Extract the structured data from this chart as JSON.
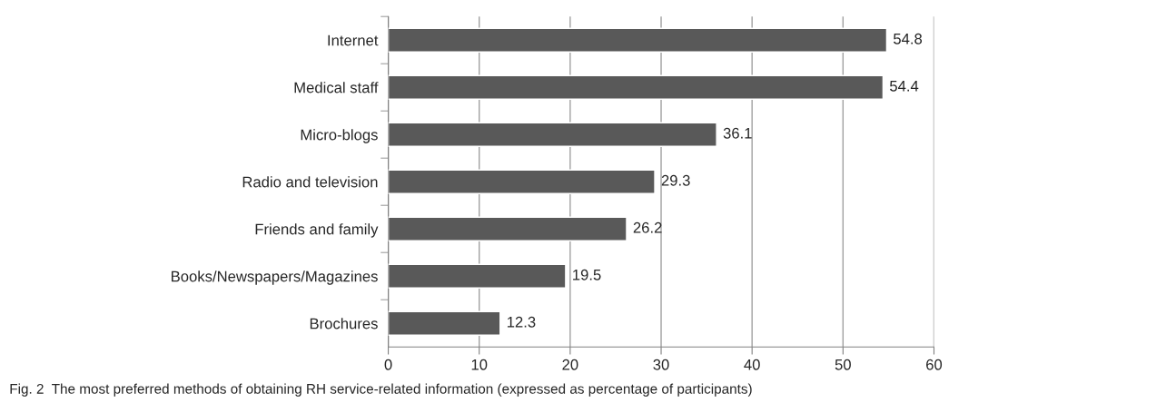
{
  "chart_data": {
    "type": "bar",
    "orientation": "horizontal",
    "categories": [
      "Internet",
      "Medical staff",
      "Micro-blogs",
      "Radio and television",
      "Friends and family",
      "Books/Newspapers/Magazines",
      "Brochures"
    ],
    "values": [
      54.8,
      54.4,
      36.1,
      29.3,
      26.2,
      19.5,
      12.3
    ],
    "color": "#595959",
    "xlim": [
      0,
      60
    ],
    "xticks": [
      0,
      10,
      20,
      30,
      40,
      50,
      60
    ],
    "grid": "x",
    "data_labels": true,
    "annotations": [
      "Fig. 2  The most preferred methods of obtaining RH service-related information (expressed as percentage of participants)"
    ]
  }
}
